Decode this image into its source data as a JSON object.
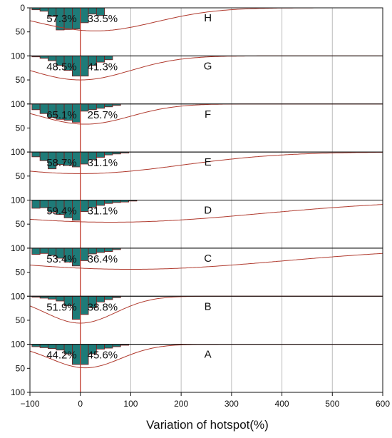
{
  "chart_data": {
    "type": "histogram-panels",
    "xlabel": "Variation of hotspot(%)",
    "xlim": [
      -100,
      600
    ],
    "xticks": [
      "−100",
      "0",
      "100",
      "200",
      "300",
      "400",
      "500",
      "600"
    ],
    "xtick_values": [
      -100,
      0,
      100,
      200,
      300,
      400,
      500,
      600
    ],
    "ylim": [
      0,
      100
    ],
    "yticks": [
      0,
      50,
      100
    ],
    "bin_width": 16,
    "bar_fill": "#1e7b78",
    "bar_edge": "#7a1a1a",
    "fit_color": "#b03a2e",
    "zero_line_color": "#c0392b",
    "grid": "vertical",
    "panels": [
      {
        "label": "H",
        "left_pct": "57.3%",
        "right_pct": "33.5%",
        "bins_start": -96,
        "values": [
          4,
          7,
          18,
          46,
          45,
          44,
          31,
          13,
          16,
          0,
          0,
          0,
          0,
          0,
          0,
          0,
          0,
          0,
          0,
          0,
          0,
          0,
          0,
          0,
          0,
          0,
          0,
          0,
          0,
          0,
          0,
          0,
          0,
          0,
          0,
          0,
          0,
          0,
          0,
          0,
          0,
          0,
          0,
          0
        ],
        "fit": {
          "mean": 30,
          "sd": 120,
          "peak": 48
        }
      },
      {
        "label": "G",
        "left_pct": "48.5%",
        "right_pct": "41.3%",
        "bins_start": -96,
        "values": [
          2,
          5,
          10,
          20,
          30,
          42,
          42,
          20,
          13,
          8,
          0,
          0,
          0,
          0,
          0,
          0,
          0,
          0,
          0,
          0,
          0,
          0,
          0,
          0,
          0,
          0,
          0,
          0,
          0,
          0,
          0,
          0,
          0,
          0,
          0,
          0,
          0,
          0,
          0,
          0,
          0,
          0,
          0,
          0
        ],
        "fit": {
          "mean": 0,
          "sd": 100,
          "peak": 50
        }
      },
      {
        "label": "F",
        "left_pct": "65.1%",
        "right_pct": "25.7%",
        "bins_start": -96,
        "values": [
          12,
          20,
          28,
          32,
          34,
          38,
          15,
          12,
          9,
          6,
          3,
          0,
          0,
          0,
          0,
          0,
          0,
          0,
          0,
          0,
          0,
          0,
          0,
          0,
          0,
          0,
          0,
          0,
          0,
          0,
          0,
          0,
          0,
          0,
          0,
          0,
          0,
          0,
          0,
          0,
          0,
          0,
          0,
          0
        ],
        "fit": {
          "mean": 10,
          "sd": 90,
          "peak": 42
        }
      },
      {
        "label": "E",
        "left_pct": "58.7%",
        "right_pct": "31.1%",
        "bins_start": -96,
        "values": [
          10,
          18,
          35,
          26,
          28,
          31,
          25,
          16,
          11,
          6,
          4,
          2,
          0,
          0,
          0,
          0,
          0,
          0,
          0,
          0,
          0,
          0,
          0,
          0,
          0,
          0,
          0,
          0,
          0,
          0,
          0,
          0,
          0,
          0,
          0,
          0,
          0,
          0,
          0,
          0,
          0,
          0,
          0,
          0
        ],
        "fit": {
          "mean": 0,
          "sd": 200,
          "peak": 45
        }
      },
      {
        "label": "D",
        "left_pct": "59.4%",
        "right_pct": "31.1%",
        "bins_start": -96,
        "values": [
          17,
          16,
          25,
          30,
          37,
          42,
          24,
          15,
          11,
          7,
          5,
          4,
          2,
          0,
          0,
          0,
          0,
          0,
          0,
          0,
          0,
          0,
          0,
          0,
          0,
          0,
          0,
          0,
          0,
          0,
          0,
          0,
          0,
          0,
          0,
          0,
          0,
          0,
          0,
          0,
          0,
          0,
          0,
          0
        ],
        "fit": {
          "mean": 60,
          "sd": 300,
          "peak": 46
        }
      },
      {
        "label": "C",
        "left_pct": "53.4%",
        "right_pct": "36.4%",
        "bins_start": -96,
        "values": [
          13,
          11,
          15,
          21,
          29,
          37,
          26,
          12,
          9,
          7,
          3,
          0,
          0,
          0,
          0,
          0,
          0,
          0,
          0,
          0,
          0,
          0,
          0,
          0,
          0,
          0,
          0,
          0,
          0,
          0,
          0,
          0,
          0,
          0,
          0,
          0,
          0,
          0,
          0,
          0,
          0,
          0,
          0,
          0
        ],
        "fit": {
          "mean": 100,
          "sd": 300,
          "peak": 44
        }
      },
      {
        "label": "B",
        "left_pct": "51.9%",
        "right_pct": "38.8%",
        "bins_start": -96,
        "values": [
          2,
          4,
          6,
          10,
          20,
          48,
          38,
          24,
          12,
          7,
          3,
          0,
          0,
          0,
          0,
          0,
          0,
          0,
          0,
          0,
          0,
          0,
          0,
          0,
          0,
          0,
          0,
          0,
          0,
          0,
          0,
          0,
          0,
          0,
          0,
          0,
          0,
          0,
          0,
          0,
          0,
          0,
          0,
          0
        ],
        "fit": {
          "mean": 0,
          "sd": 70,
          "peak": 56
        }
      },
      {
        "label": "A",
        "left_pct": "44.2%",
        "right_pct": "45.6%",
        "bins_start": -96,
        "values": [
          5,
          7,
          9,
          12,
          20,
          42,
          42,
          20,
          10,
          8,
          5,
          2,
          0,
          0,
          0,
          0,
          0,
          0,
          0,
          0,
          0,
          0,
          0,
          0,
          0,
          0,
          0,
          0,
          0,
          0,
          0,
          0,
          0,
          0,
          0,
          0,
          0,
          0,
          0,
          0,
          0,
          0,
          0,
          0
        ],
        "fit": {
          "mean": 10,
          "sd": 70,
          "peak": 49
        }
      }
    ]
  }
}
